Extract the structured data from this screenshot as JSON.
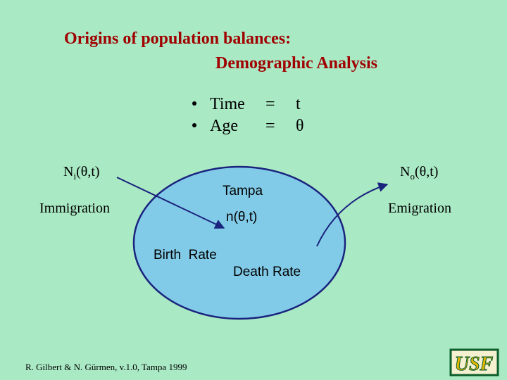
{
  "title": {
    "line1": "Origins of population balances:",
    "line2": "Demographic Analysis"
  },
  "bullets": [
    {
      "term": "Time",
      "eq": "=",
      "symbol": "t"
    },
    {
      "term": "Age",
      "eq": "=",
      "symbol": "θ"
    }
  ],
  "inflow": {
    "base": "N",
    "sub": "i",
    "args": "(θ,t)",
    "label": "Immigration"
  },
  "outflow": {
    "base": "N",
    "sub": "o",
    "args": "(θ,t)",
    "label": "Emigration"
  },
  "system": {
    "name": "Tampa",
    "variable": "n(θ,t)",
    "birth": "Birth  Rate",
    "death": "Death Rate"
  },
  "footer": "R. Gilbert & N. Gürmen, v.1.0, Tampa 1999",
  "logo": "USF"
}
